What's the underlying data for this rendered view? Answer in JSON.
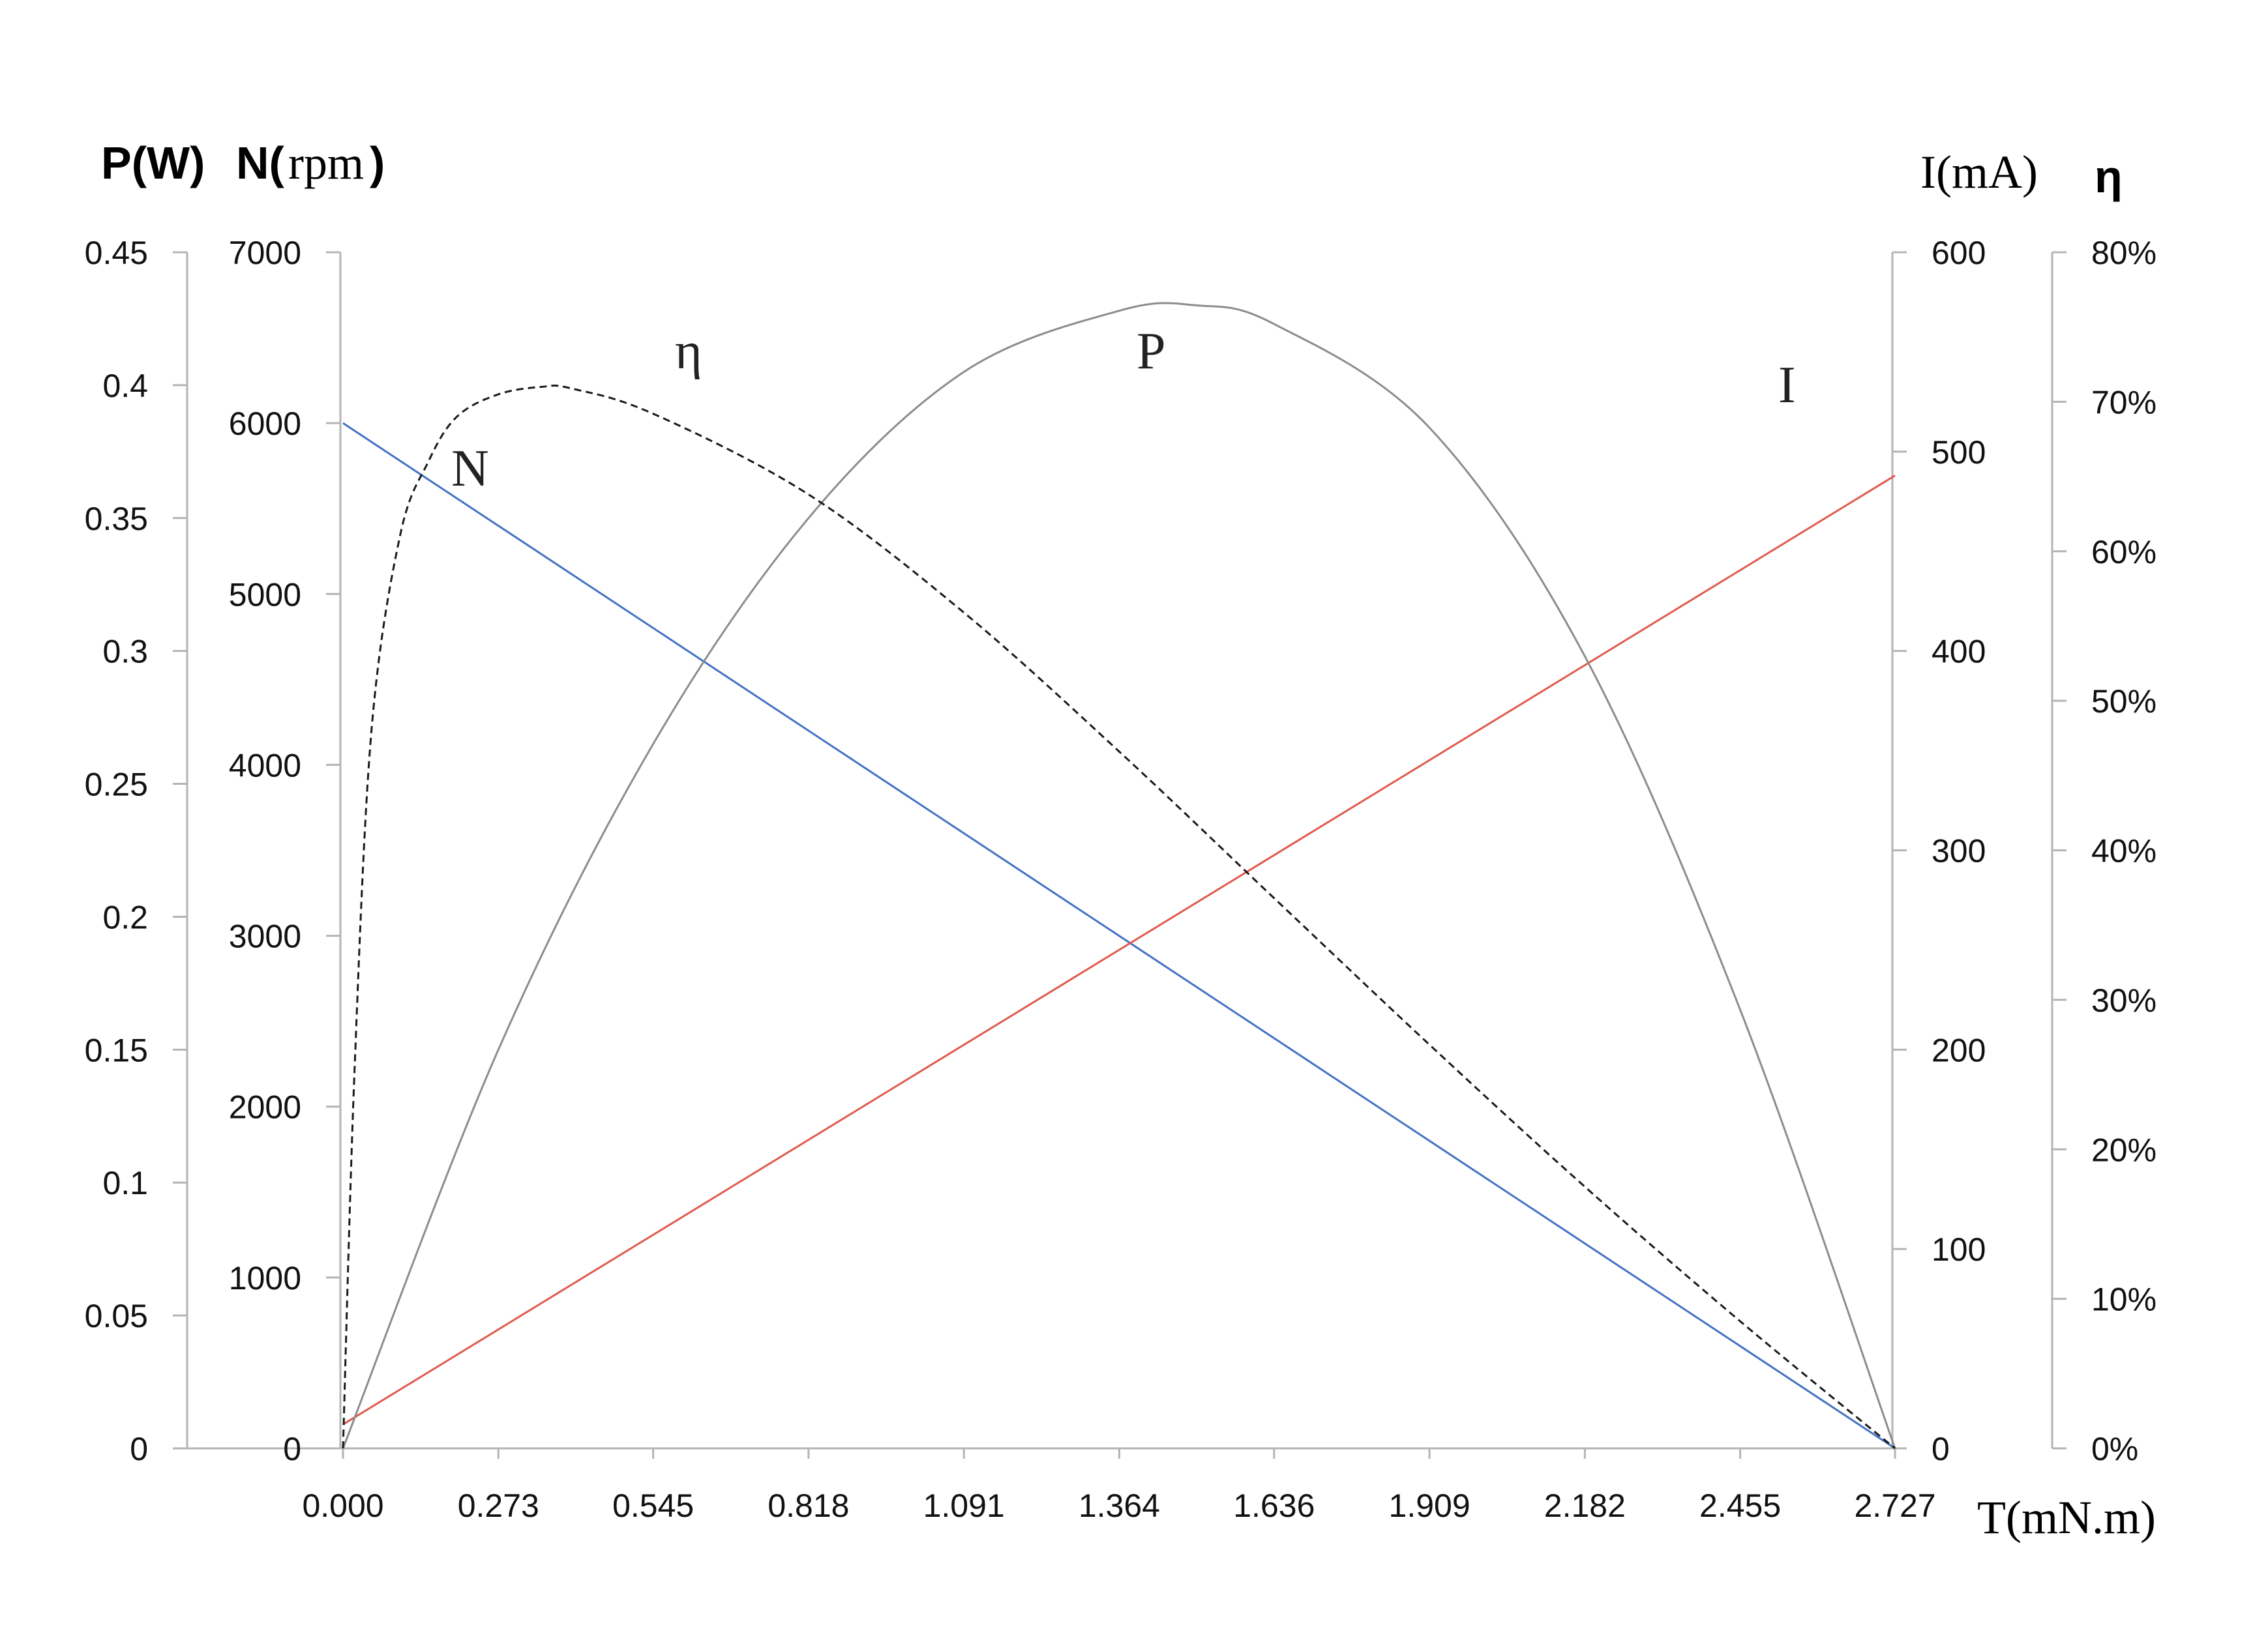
{
  "chart_data": {
    "type": "line",
    "title": "",
    "grid": false,
    "x": [
      0.0,
      0.273,
      0.545,
      0.818,
      1.091,
      1.364,
      1.636,
      1.909,
      2.182,
      2.455,
      2.727
    ],
    "xlim": [
      0,
      2.727
    ],
    "xticks": [
      "0.000",
      "0.273",
      "0.545",
      "0.818",
      "1.091",
      "1.364",
      "1.636",
      "1.909",
      "2.182",
      "2.455",
      "2.727"
    ],
    "xlabel": "T(mN.m)",
    "axes": {
      "P": {
        "label_a": "P(W)",
        "ylim": [
          0,
          0.45
        ],
        "ticks": [
          "0",
          "0.05",
          "0.1",
          "0.15",
          "0.2",
          "0.25",
          "0.3",
          "0.35",
          "0.4",
          "0.45"
        ]
      },
      "N": {
        "label_a": "N(",
        "label_b": "rpm",
        "label_c": ")",
        "ylim": [
          0,
          7000
        ],
        "ticks": [
          "0",
          "1000",
          "2000",
          "3000",
          "4000",
          "5000",
          "6000",
          "7000"
        ]
      },
      "I": {
        "label": "I(mA)",
        "ylim": [
          0,
          600
        ],
        "ticks": [
          "0",
          "100",
          "200",
          "300",
          "400",
          "500",
          "600"
        ]
      },
      "eta": {
        "label": "η",
        "ylim": [
          0,
          80
        ],
        "ticks": [
          "0%",
          "10%",
          "20%",
          "30%",
          "40%",
          "50%",
          "60%",
          "70%",
          "80%"
        ]
      }
    },
    "series": [
      {
        "name": "N",
        "axis": "N",
        "color": "#4472c4",
        "style": "solid",
        "x": [
          0.0,
          2.727
        ],
        "values": [
          6000,
          0
        ]
      },
      {
        "name": "I",
        "axis": "I",
        "color": "#e05a4e",
        "style": "solid",
        "x": [
          0.0,
          2.727
        ],
        "values": [
          12,
          488
        ]
      },
      {
        "name": "P",
        "axis": "P",
        "color": "#8c8c8c",
        "style": "solid",
        "x": [
          0.0,
          0.273,
          0.545,
          0.818,
          1.091,
          1.364,
          1.5,
          1.636,
          1.909,
          2.182,
          2.455,
          2.727
        ],
        "values": [
          0,
          0.15,
          0.265,
          0.35,
          0.405,
          0.428,
          0.43,
          0.423,
          0.384,
          0.298,
          0.165,
          0
        ]
      },
      {
        "name": "η",
        "axis": "eta",
        "color": "#1a1a1a",
        "style": "dashed",
        "x": [
          0.0,
          0.02,
          0.05,
          0.1,
          0.15,
          0.2,
          0.273,
          0.35,
          0.4,
          0.545,
          0.818,
          1.091,
          1.364,
          1.636,
          1.909,
          2.182,
          2.455,
          2.727
        ],
        "values": [
          0,
          25,
          48,
          61,
          66,
          69,
          70.5,
          71,
          70.9,
          69.2,
          63.8,
          55.9,
          46.6,
          36.8,
          27.0,
          17.5,
          8.5,
          0
        ]
      }
    ],
    "curve_labels": [
      "N",
      "η",
      "P",
      "I"
    ]
  }
}
